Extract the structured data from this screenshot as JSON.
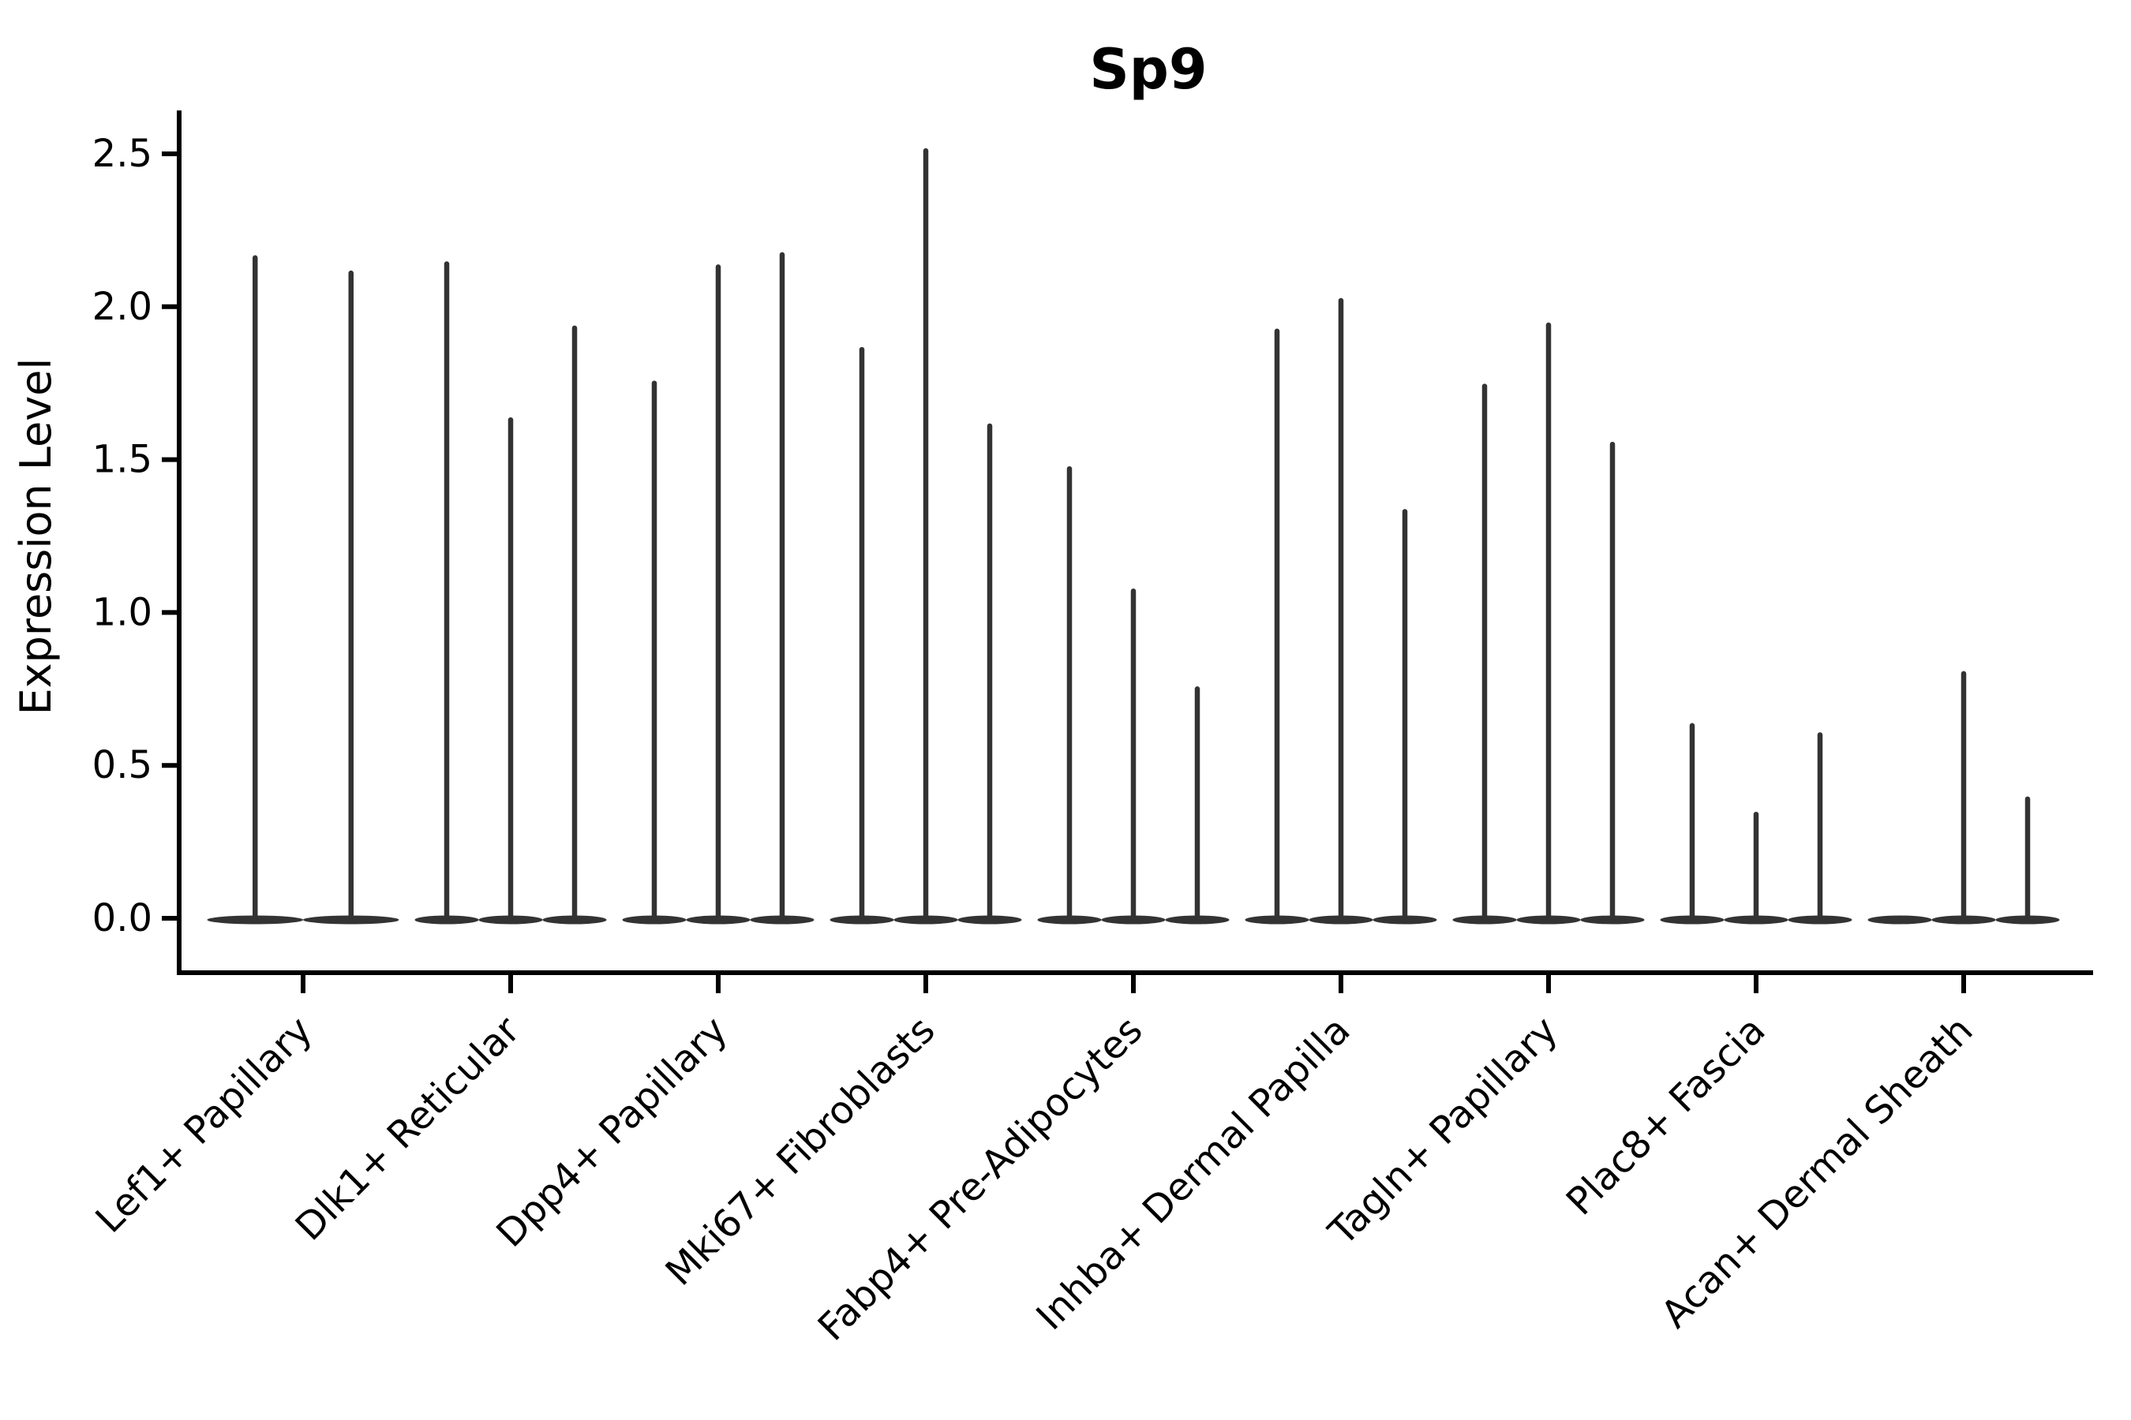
{
  "chart_data": {
    "type": "violin",
    "title": "Sp9",
    "ylabel": "Expression Level",
    "xlabel": "",
    "yticks": [
      "0.0",
      "0.5",
      "1.0",
      "1.5",
      "2.0",
      "2.5"
    ],
    "ylim": [
      0,
      2.6
    ],
    "grid": false,
    "legend": "none",
    "categories": [
      "Lef1+ Papillary",
      "Dlk1+ Reticular",
      "Dpp4+ Papillary",
      "Mki67+ Fibroblasts",
      "Fabp4+ Pre-Adipocytes",
      "Inhba+ Dermal Papilla",
      "Tagln+ Papillary",
      "Plac8+ Fascia",
      "Acan+ Dermal Sheath"
    ],
    "groups": [
      {
        "category": "Lef1+ Papillary",
        "violin_maxima": [
          2.16,
          2.11
        ]
      },
      {
        "category": "Dlk1+ Reticular",
        "violin_maxima": [
          2.14,
          1.63,
          1.93
        ]
      },
      {
        "category": "Dpp4+ Papillary",
        "violin_maxima": [
          1.75,
          2.13,
          2.17
        ]
      },
      {
        "category": "Mki67+ Fibroblasts",
        "violin_maxima": [
          1.86,
          2.51,
          1.61
        ]
      },
      {
        "category": "Fabp4+ Pre-Adipocytes",
        "violin_maxima": [
          1.47,
          1.07,
          0.75
        ]
      },
      {
        "category": "Inhba+ Dermal Papilla",
        "violin_maxima": [
          1.92,
          2.02,
          1.33
        ]
      },
      {
        "category": "Tagln+ Papillary",
        "violin_maxima": [
          1.74,
          1.94,
          1.55
        ]
      },
      {
        "category": "Plac8+ Fascia",
        "violin_maxima": [
          0.63,
          0.34,
          0.6
        ]
      },
      {
        "category": "Acan+ Dermal Sheath",
        "violin_maxima": [
          0.0,
          0.8,
          0.39
        ]
      }
    ],
    "violin_color": "#333333",
    "axis_color": "#000000",
    "background_color": "#ffffff"
  }
}
